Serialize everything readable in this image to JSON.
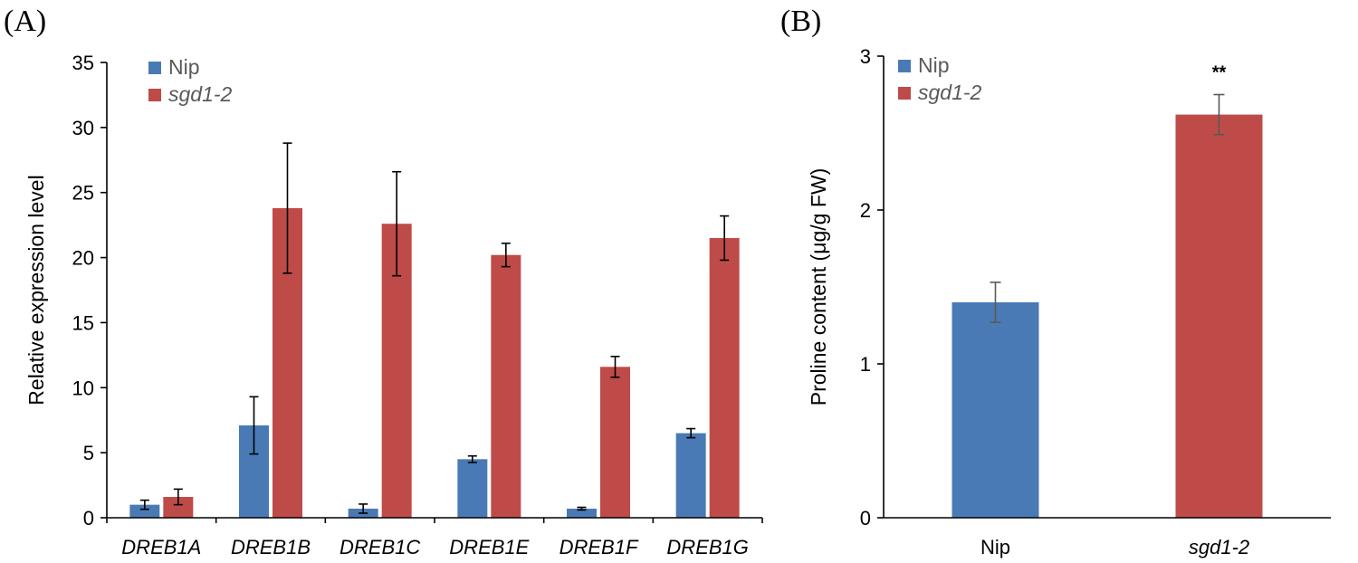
{
  "figure": {
    "panels": [
      {
        "label": "(A)"
      },
      {
        "label": "(B)"
      }
    ]
  },
  "chart_data": [
    {
      "type": "bar",
      "title": "",
      "xlabel": "",
      "ylabel": "Relative expression level",
      "ylim": [
        0,
        35
      ],
      "yticks": [
        0,
        5,
        10,
        15,
        20,
        25,
        30,
        35
      ],
      "categories": [
        "DREB1A",
        "DREB1B",
        "DREB1C",
        "DREB1E",
        "DREB1F",
        "DREB1G"
      ],
      "series": [
        {
          "name": "Nip",
          "color": "#4a7ab5",
          "values": [
            1.0,
            7.1,
            0.7,
            4.5,
            0.7,
            6.5
          ],
          "errors": [
            0.35,
            2.2,
            0.35,
            0.25,
            0.1,
            0.35
          ]
        },
        {
          "name": "sgd1-2",
          "color": "#be4b48",
          "values": [
            1.6,
            23.8,
            22.6,
            20.2,
            11.6,
            21.5
          ],
          "errors": [
            0.6,
            5.0,
            4.0,
            0.9,
            0.8,
            1.7
          ]
        }
      ],
      "legend": {
        "position": "top-left"
      },
      "grid": false
    },
    {
      "type": "bar",
      "title": "",
      "xlabel": "",
      "ylabel": "Proline content (μg/g FW)",
      "ylim": [
        0,
        3
      ],
      "yticks": [
        0,
        1,
        2,
        3
      ],
      "categories": [
        "Nip",
        "sgd1-2"
      ],
      "values": [
        1.4,
        2.62
      ],
      "errors": [
        0.13,
        0.13
      ],
      "colors": [
        "#4a7ab5",
        "#be4b48"
      ],
      "annotations": [
        {
          "category": "sgd1-2",
          "text": "**"
        }
      ],
      "legend": {
        "position": "top-left",
        "entries": [
          {
            "name": "Nip",
            "color": "#4a7ab5"
          },
          {
            "name": "sgd1-2",
            "color": "#be4b48"
          }
        ]
      },
      "grid": false
    }
  ]
}
